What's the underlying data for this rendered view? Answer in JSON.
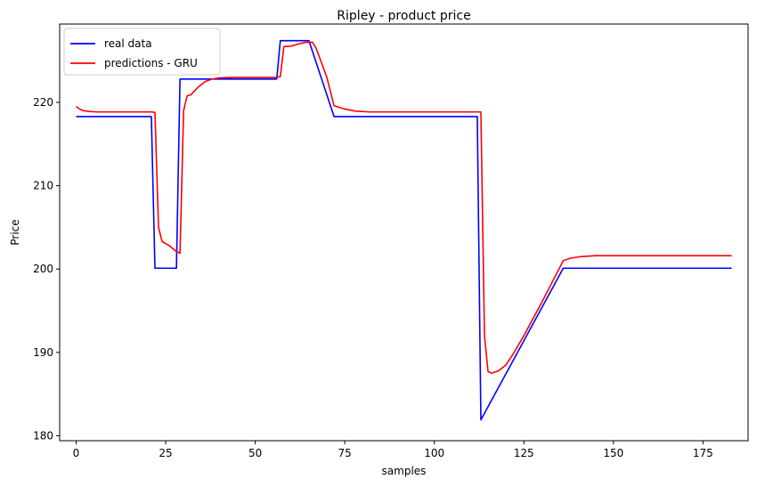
{
  "chart_data": {
    "type": "line",
    "title": "Ripley - product price",
    "xlabel": "samples",
    "ylabel": "Price",
    "xlim": [
      -4.6,
      187.6
    ],
    "ylim": [
      179.4,
      229.4
    ],
    "xticks": [
      0,
      25,
      50,
      75,
      100,
      125,
      150,
      175
    ],
    "yticks": [
      180,
      190,
      200,
      210,
      220
    ],
    "grid": false,
    "legend_position": "top-left",
    "series": [
      {
        "name": "real data",
        "color": "#0000ff",
        "points": [
          [
            0,
            218.3
          ],
          [
            21,
            218.3
          ],
          [
            22,
            200.1
          ],
          [
            28,
            200.1
          ],
          [
            29,
            222.8
          ],
          [
            56,
            222.8
          ],
          [
            57,
            227.4
          ],
          [
            65,
            227.4
          ],
          [
            72,
            218.3
          ],
          [
            112,
            218.3
          ],
          [
            113,
            181.9
          ],
          [
            136,
            200.1
          ],
          [
            183,
            200.1
          ]
        ]
      },
      {
        "name": "predictions - GRU",
        "color": "#ff0000",
        "points": [
          [
            0,
            219.5
          ],
          [
            1,
            219.2
          ],
          [
            2,
            219.0
          ],
          [
            4,
            218.9
          ],
          [
            6,
            218.85
          ],
          [
            21,
            218.85
          ],
          [
            22,
            218.8
          ],
          [
            23,
            205.0
          ],
          [
            24,
            203.3
          ],
          [
            26,
            202.8
          ],
          [
            28,
            202.1
          ],
          [
            29,
            201.9
          ],
          [
            30,
            219.0
          ],
          [
            31,
            220.8
          ],
          [
            32,
            220.9
          ],
          [
            34,
            221.8
          ],
          [
            36,
            222.5
          ],
          [
            38,
            222.8
          ],
          [
            40,
            222.95
          ],
          [
            45,
            223.0
          ],
          [
            56,
            223.0
          ],
          [
            57,
            223.1
          ],
          [
            58,
            226.7
          ],
          [
            60,
            226.75
          ],
          [
            62,
            227.0
          ],
          [
            64,
            227.2
          ],
          [
            66,
            227.2
          ],
          [
            67,
            226.5
          ],
          [
            70,
            223.0
          ],
          [
            72,
            219.6
          ],
          [
            75,
            219.2
          ],
          [
            78,
            218.95
          ],
          [
            82,
            218.85
          ],
          [
            113,
            218.85
          ],
          [
            114,
            192.0
          ],
          [
            115,
            187.7
          ],
          [
            116,
            187.5
          ],
          [
            118,
            187.8
          ],
          [
            120,
            188.5
          ],
          [
            122,
            189.8
          ],
          [
            125,
            192.0
          ],
          [
            130,
            196.0
          ],
          [
            136,
            201.0
          ],
          [
            138,
            201.3
          ],
          [
            141,
            201.5
          ],
          [
            145,
            201.6
          ],
          [
            183,
            201.6
          ]
        ]
      }
    ]
  }
}
